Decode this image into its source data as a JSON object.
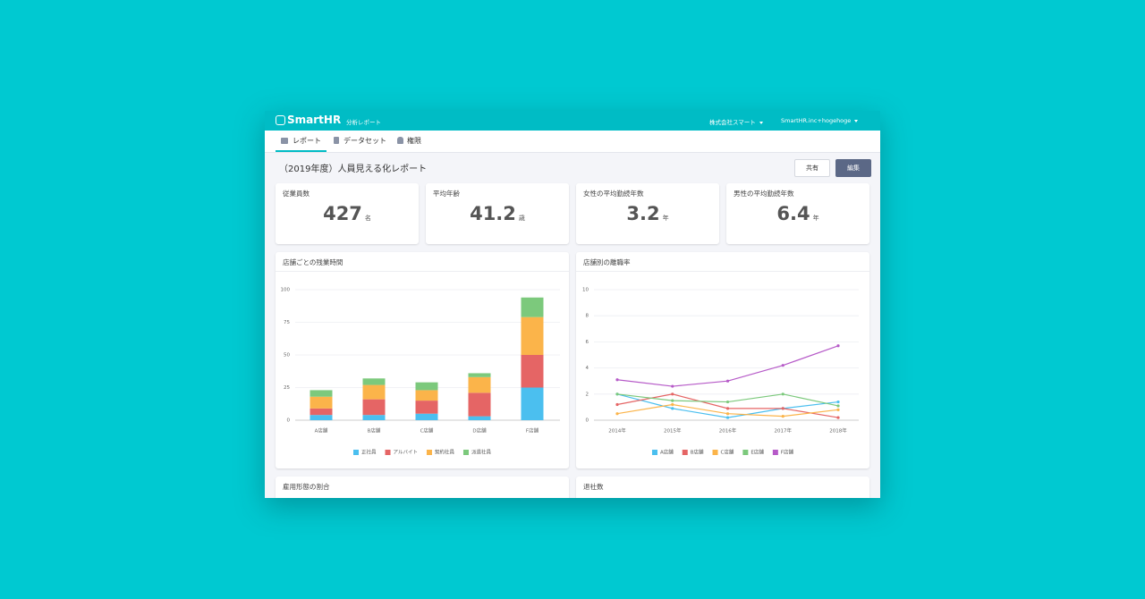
{
  "header": {
    "logo": "SmartHR",
    "app": "分析レポート",
    "company": "株式会社スマート",
    "user": "SmartHR.inc+hogehoge"
  },
  "tabs": [
    "レポート",
    "データセット",
    "権限"
  ],
  "page": {
    "title": "（2019年度）人員見える化レポート",
    "buttons": [
      "共有",
      "編集"
    ]
  },
  "kpis": [
    {
      "label": "従業員数",
      "value": 427,
      "unit": "名"
    },
    {
      "label": "平均年齢",
      "value": 41.2,
      "unit": "歳"
    },
    {
      "label": "女性の平均勤続年数",
      "value": 3.2,
      "unit": "年"
    },
    {
      "label": "男性の平均勤続年数",
      "value": 6.4,
      "unit": "年"
    }
  ],
  "chart_data": [
    {
      "type": "bar",
      "stacked": true,
      "title": "店舗ごとの残業時間",
      "categories": [
        "A店舗",
        "B店舗",
        "C店舗",
        "D店舗",
        "F店舗"
      ],
      "series": [
        {
          "name": "正社員",
          "color": "#4bbfef",
          "values": [
            4,
            4,
            5,
            3,
            25
          ]
        },
        {
          "name": "アルバイト",
          "color": "#e56565",
          "values": [
            5,
            12,
            10,
            18,
            25
          ]
        },
        {
          "name": "契約社員",
          "color": "#fbb44a",
          "values": [
            9,
            11,
            8,
            12,
            29
          ]
        },
        {
          "name": "派遣社員",
          "color": "#7cc97c",
          "values": [
            5,
            5,
            6,
            3,
            15
          ]
        }
      ],
      "ylim": [
        0,
        100
      ],
      "yticks": [
        0,
        25,
        50,
        75,
        100
      ],
      "grid": true,
      "legend": "bottom"
    },
    {
      "type": "line",
      "title": "店舗別の離職率",
      "categories": [
        "2014年",
        "2015年",
        "2016年",
        "2017年",
        "2018年"
      ],
      "series": [
        {
          "name": "A店舗",
          "color": "#4bbfef",
          "values": [
            2.0,
            0.9,
            0.2,
            0.9,
            1.4
          ]
        },
        {
          "name": "B店舗",
          "color": "#e56565",
          "values": [
            1.2,
            2.0,
            0.9,
            0.9,
            0.2
          ]
        },
        {
          "name": "C店舗",
          "color": "#fbb44a",
          "values": [
            0.5,
            1.2,
            0.5,
            0.3,
            0.8
          ]
        },
        {
          "name": "E店舗",
          "color": "#7cc97c",
          "values": [
            2.0,
            1.5,
            1.4,
            2.0,
            1.1
          ]
        },
        {
          "name": "F店舗",
          "color": "#b65ac8",
          "values": [
            3.1,
            2.6,
            3.0,
            4.2,
            5.7
          ]
        }
      ],
      "ylim": [
        0,
        10
      ],
      "yticks": [
        0,
        2,
        4,
        6,
        8,
        10
      ],
      "grid": true,
      "legend": "bottom"
    }
  ],
  "sections": [
    "雇用形態の割合",
    "退社数"
  ]
}
